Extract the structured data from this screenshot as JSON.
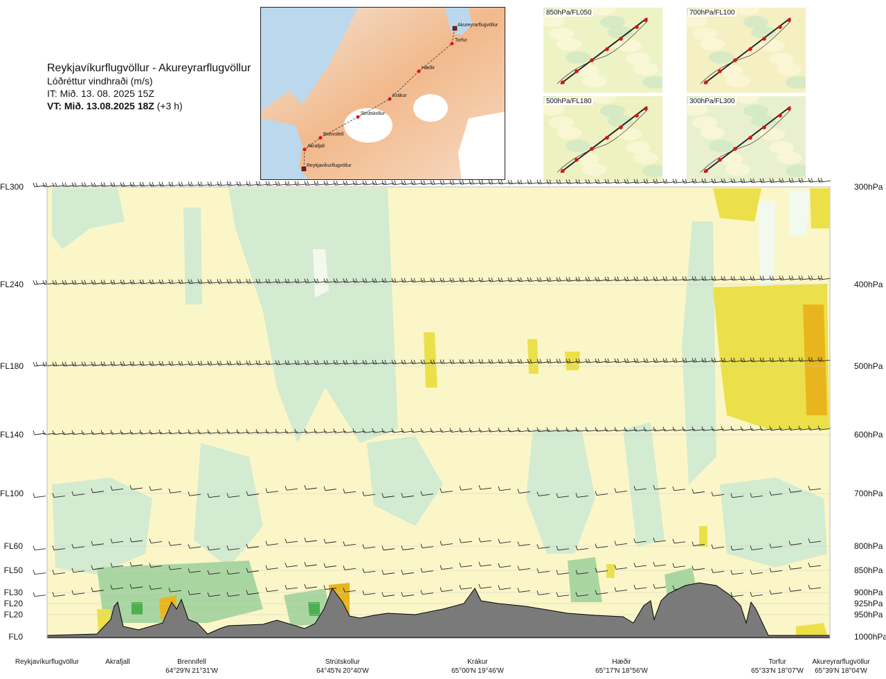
{
  "header": {
    "title": "Reykjavíkurflugvöllur - Akureyrarflugvöllur",
    "variable": "Lóðréttur vindhraði (m/s)",
    "initial_time": "IT: Mið. 13. 08. 2025 15Z",
    "valid_time_bold": "VT: Mið. 13.08.2025 18Z",
    "valid_offset": "(+3 h)"
  },
  "route_map": {
    "waypoints": [
      {
        "name": "Akureyrarflugvöllur"
      },
      {
        "name": "Torfur"
      },
      {
        "name": "Hæðir"
      },
      {
        "name": "Krákur"
      },
      {
        "name": "Strútskollur"
      },
      {
        "name": "Brennifell"
      },
      {
        "name": "Akrafjall"
      },
      {
        "name": "Reykjavíkurflugvöllur"
      }
    ]
  },
  "insets": [
    {
      "label": "850hPa/FL050"
    },
    {
      "label": "700hPa/FL100"
    },
    {
      "label": "500hPa/FL180"
    },
    {
      "label": "300hPa/FL300"
    }
  ],
  "chart_data": {
    "type": "heatmap",
    "title": "Reykjavíkurflugvöllur - Akureyrarflugvöllur",
    "variable": "Lóðréttur vindhraði (m/s)",
    "levels": [
      {
        "fl": "FL300",
        "hpa": "300hPa",
        "pressure": 300
      },
      {
        "fl": "FL240",
        "hpa": "400hPa",
        "pressure": 400
      },
      {
        "fl": "FL180",
        "hpa": "500hPa",
        "pressure": 500
      },
      {
        "fl": "FL140",
        "hpa": "600hPa",
        "pressure": 600
      },
      {
        "fl": "FL100",
        "hpa": "700hPa",
        "pressure": 700
      },
      {
        "fl": "FL60",
        "hpa": "800hPa",
        "pressure": 800
      },
      {
        "fl": "FL50",
        "hpa": "850hPa",
        "pressure": 850
      },
      {
        "fl": "FL30",
        "hpa": "900hPa",
        "pressure": 900
      },
      {
        "fl": "FL20",
        "hpa": "925hPa",
        "pressure": 925
      },
      {
        "fl": "FL20",
        "hpa": "950hPa",
        "pressure": 950
      },
      {
        "fl": "FL0",
        "hpa": "1000hPa",
        "pressure": 1000
      }
    ],
    "locations": [
      {
        "name": "Reykjavíkurflugvöllur",
        "coord": ""
      },
      {
        "name": "Akrafjall",
        "coord": ""
      },
      {
        "name": "Brennifell",
        "coord": "64°29'N 21°31'W"
      },
      {
        "name": "Strútskollur",
        "coord": "64°45'N 20°40'W"
      },
      {
        "name": "Krákur",
        "coord": "65°00'N 19°46'W"
      },
      {
        "name": "Hæðir",
        "coord": "65°17'N 18°56'W"
      },
      {
        "name": "Torfur",
        "coord": "65°33'N 18°07'W"
      },
      {
        "name": "Akureyrarflugvöllur",
        "coord": "65°39'N 18°04'W"
      }
    ],
    "colors": {
      "strong_down": "#4caf50",
      "down": "#a9d6a0",
      "weak_down": "#d3ebd1",
      "neutral_light": "#f2f9ee",
      "neutral": "#fbf6c8",
      "weak_up": "#f8f0a8",
      "up": "#ece04a",
      "strong_up": "#e9b51e",
      "terrain": "#7a7a7a"
    }
  }
}
